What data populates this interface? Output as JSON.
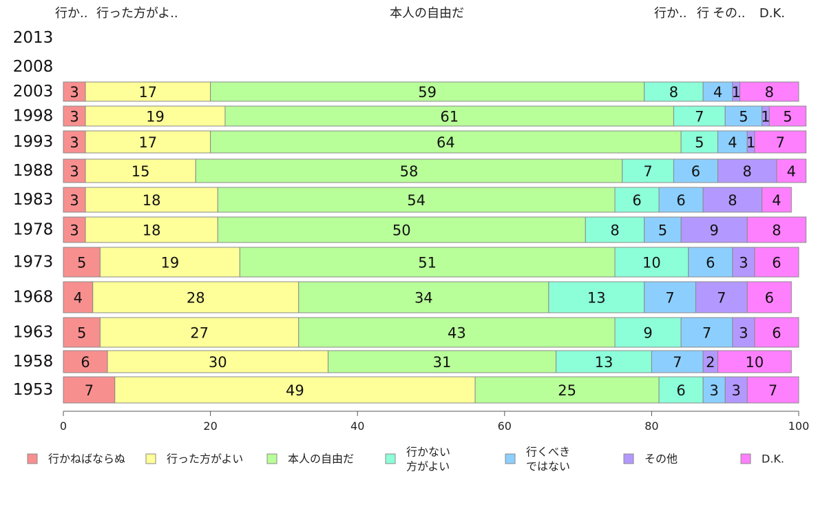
{
  "chart_data": {
    "type": "bar",
    "orientation": "horizontal",
    "stacked": true,
    "top_labels": [
      "行か..",
      "行った方がよ..",
      "本人の自由だ",
      "行か..",
      "行",
      "その..",
      "D.K."
    ],
    "categories": [
      "2013",
      "2008",
      "2003",
      "1998",
      "1993",
      "1988",
      "1983",
      "1978",
      "1973",
      "1968",
      "1963",
      "1958",
      "1953"
    ],
    "series": [
      {
        "name": "行かねばならぬ",
        "legend": [
          "行かねばならぬ"
        ],
        "color": "#f88f8f",
        "values": [
          null,
          null,
          3,
          3,
          3,
          3,
          3,
          3,
          5,
          4,
          5,
          6,
          7
        ]
      },
      {
        "name": "行った方がよい",
        "legend": [
          "行った方がよい"
        ],
        "color": "#ffff99",
        "values": [
          null,
          null,
          17,
          19,
          17,
          15,
          18,
          18,
          19,
          28,
          27,
          30,
          49
        ]
      },
      {
        "name": "本人の自由だ",
        "legend": [
          "本人の自由だ"
        ],
        "color": "#b8ff99",
        "values": [
          null,
          null,
          59,
          61,
          64,
          58,
          54,
          50,
          51,
          34,
          43,
          31,
          25
        ]
      },
      {
        "name": "行かない方がよい",
        "legend": [
          "行かない",
          "方がよい"
        ],
        "color": "#8cffd9",
        "values": [
          null,
          null,
          8,
          7,
          5,
          7,
          6,
          8,
          10,
          13,
          9,
          13,
          6
        ]
      },
      {
        "name": "行くべきではない",
        "legend": [
          "行くべき",
          "ではない"
        ],
        "color": "#8ccfff",
        "values": [
          null,
          null,
          4,
          5,
          4,
          6,
          6,
          5,
          6,
          7,
          7,
          7,
          3
        ]
      },
      {
        "name": "その他",
        "legend": [
          "その他"
        ],
        "color": "#b399ff",
        "values": [
          null,
          null,
          1,
          1,
          1,
          8,
          8,
          9,
          3,
          7,
          3,
          2,
          3
        ]
      },
      {
        "name": "D.K.",
        "legend": [
          "D.K."
        ],
        "color": "#ff80ff",
        "values": [
          null,
          null,
          8,
          5,
          7,
          4,
          4,
          8,
          6,
          6,
          6,
          10,
          7
        ]
      }
    ],
    "xlim": [
      0,
      100
    ],
    "xticks": [
      0,
      20,
      40,
      60,
      80,
      100
    ],
    "legend_position": "bottom"
  }
}
